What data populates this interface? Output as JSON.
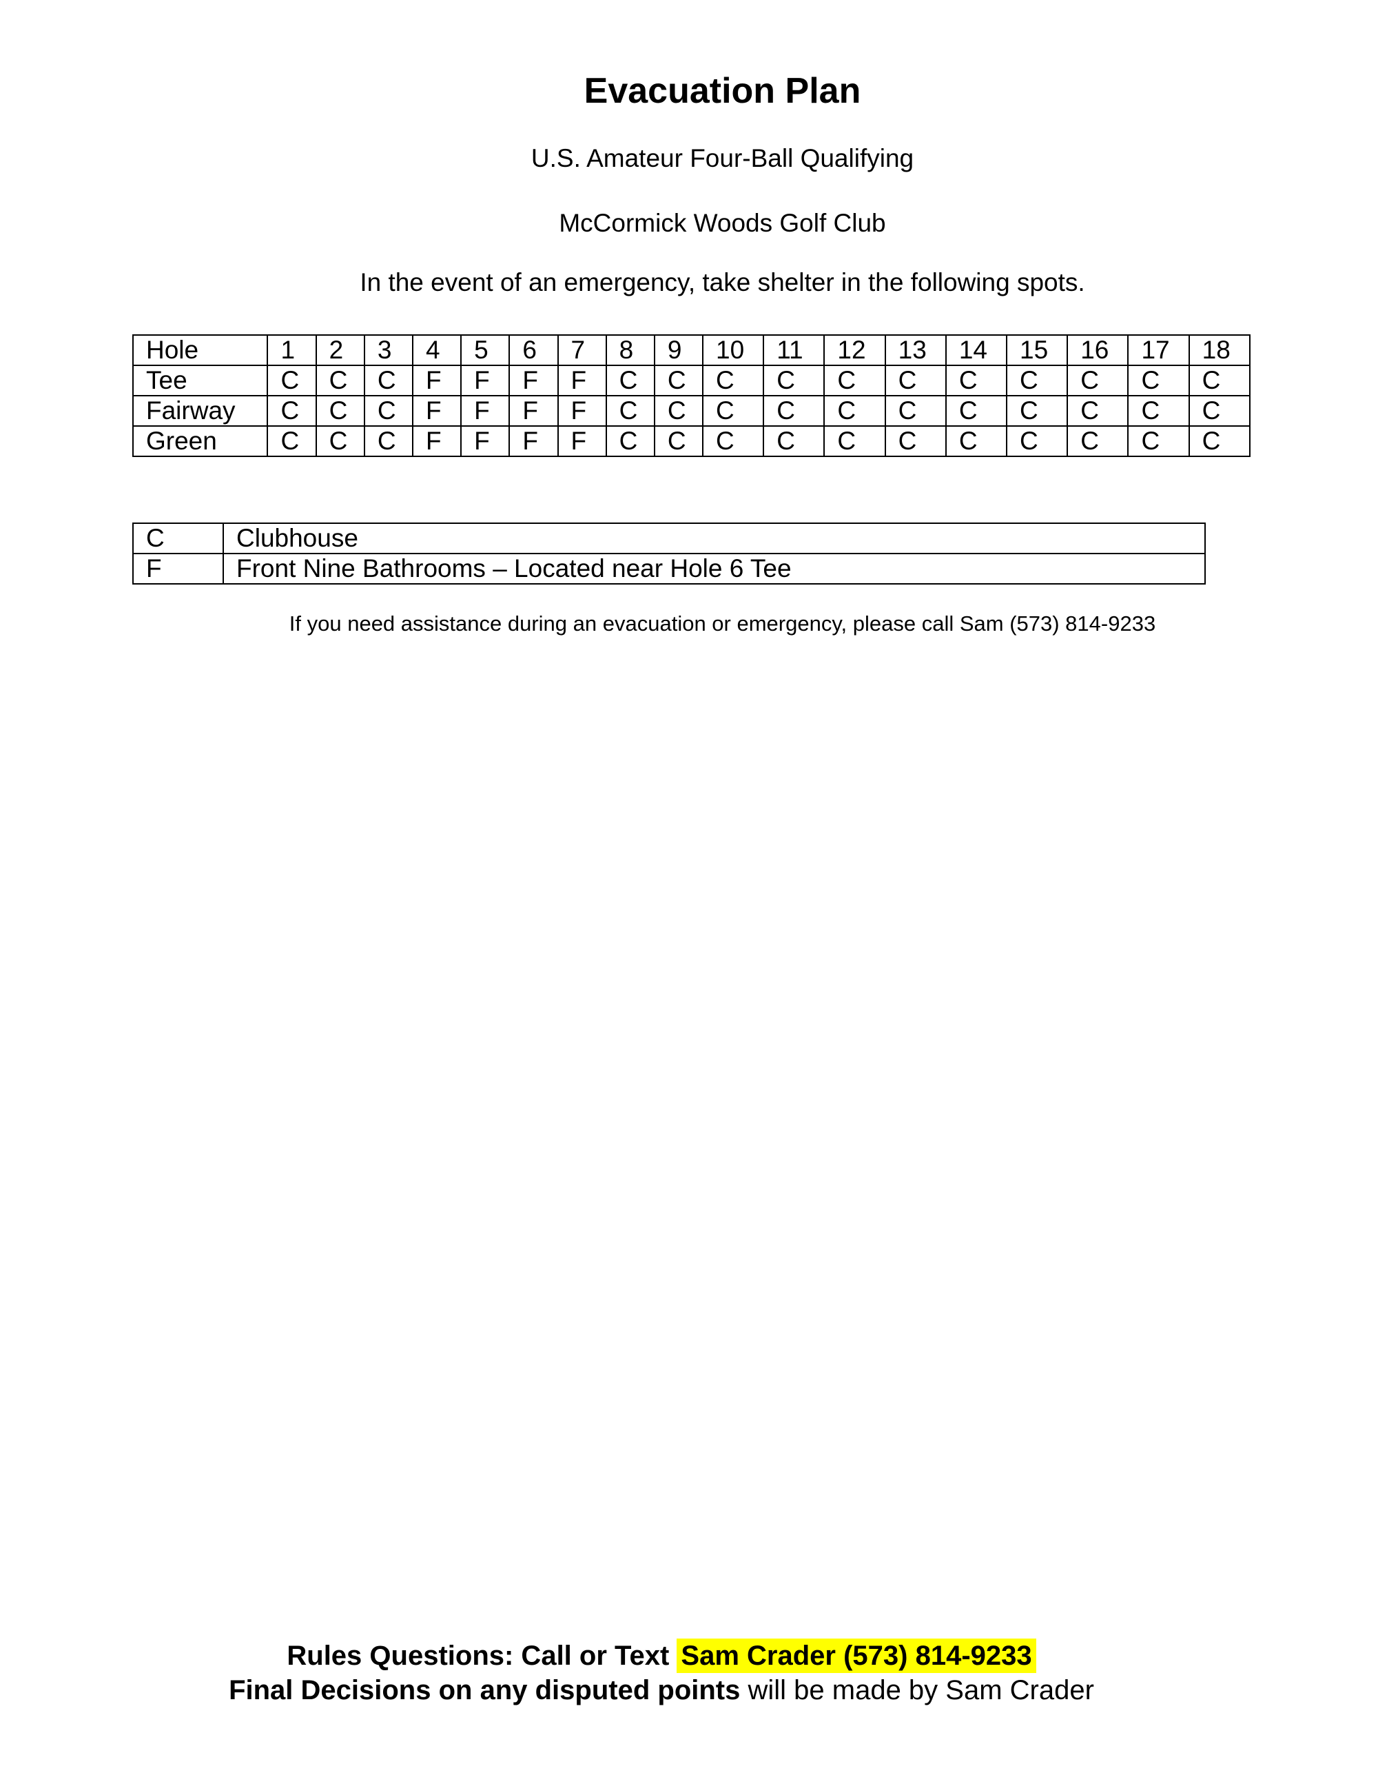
{
  "document": {
    "title": "Evacuation Plan",
    "event": "U.S. Amateur Four-Ball Qualifying",
    "venue": "McCormick Woods Golf Club",
    "instruction": "In the event of an emergency, take shelter in the following spots.",
    "assistance_note": "If you need assistance during an evacuation or emergency, please call Sam (573) 814-9233"
  },
  "shelter_table": {
    "header_label": "Hole",
    "holes": [
      "1",
      "2",
      "3",
      "4",
      "5",
      "6",
      "7",
      "8",
      "9",
      "10",
      "11",
      "12",
      "13",
      "14",
      "15",
      "16",
      "17",
      "18"
    ],
    "rows": [
      {
        "label": "Tee",
        "values": [
          "C",
          "C",
          "C",
          "F",
          "F",
          "F",
          "F",
          "C",
          "C",
          "C",
          "C",
          "C",
          "C",
          "C",
          "C",
          "C",
          "C",
          "C"
        ]
      },
      {
        "label": "Fairway",
        "values": [
          "C",
          "C",
          "C",
          "F",
          "F",
          "F",
          "F",
          "C",
          "C",
          "C",
          "C",
          "C",
          "C",
          "C",
          "C",
          "C",
          "C",
          "C"
        ]
      },
      {
        "label": "Green",
        "values": [
          "C",
          "C",
          "C",
          "F",
          "F",
          "F",
          "F",
          "C",
          "C",
          "C",
          "C",
          "C",
          "C",
          "C",
          "C",
          "C",
          "C",
          "C"
        ]
      }
    ]
  },
  "legend": {
    "entries": [
      {
        "code": "C",
        "meaning": "Clubhouse"
      },
      {
        "code": "F",
        "meaning": "Front Nine Bathrooms – Located near Hole 6 Tee"
      }
    ]
  },
  "footer": {
    "rules_prefix": "Rules Questions: Call or Text ",
    "rules_highlight": "Sam Crader (573) 814-9233",
    "highlight_color": "#ffff00",
    "final_bold": "Final Decisions on any disputed points",
    "final_rest": " will be made by Sam Crader"
  }
}
